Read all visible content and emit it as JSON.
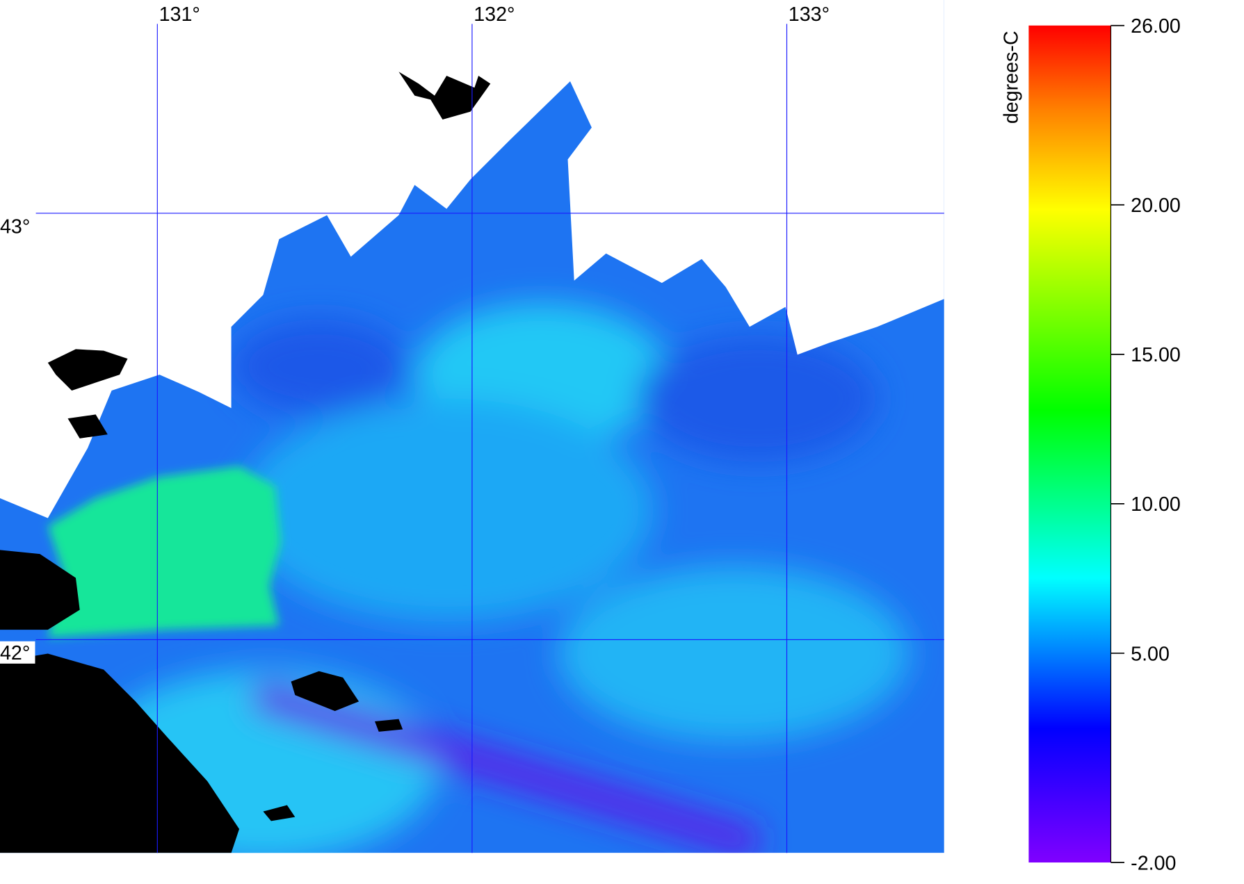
{
  "map": {
    "xlim": [
      130.5,
      133.5
    ],
    "ylim": [
      41.5,
      43.5
    ],
    "lon_ticks": [
      {
        "value": 131,
        "label": "131°"
      },
      {
        "value": 132,
        "label": "132°"
      },
      {
        "value": 133,
        "label": "133°"
      }
    ],
    "lat_ticks": [
      {
        "value": 43,
        "label": "43°"
      },
      {
        "value": 42,
        "label": "42°"
      }
    ],
    "grid_color": "#1a1aff",
    "colorbar": {
      "title": "degrees-C",
      "lim": [
        -2,
        26
      ],
      "ticks": [
        {
          "value": -2,
          "label": "-2.00"
        },
        {
          "value": 5,
          "label": "5.00"
        },
        {
          "value": 10,
          "label": "10.00"
        },
        {
          "value": 15,
          "label": "15.00"
        },
        {
          "value": 20,
          "label": "20.00"
        },
        {
          "value": 26,
          "label": "26.00"
        }
      ]
    }
  }
}
